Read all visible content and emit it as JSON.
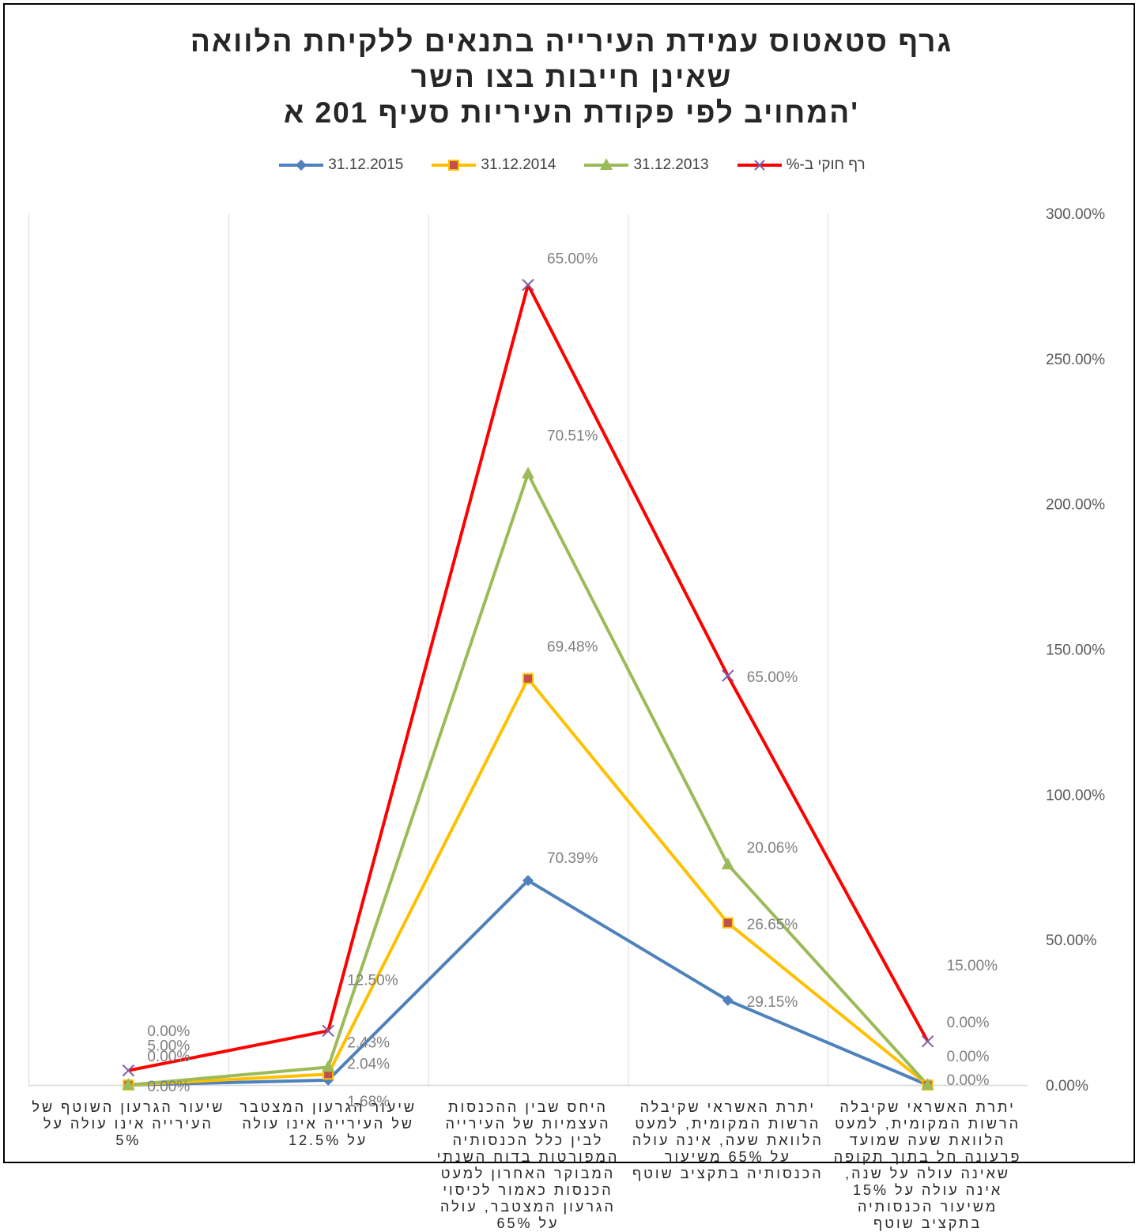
{
  "chart_data": {
    "type": "line",
    "title": [
      "גרף סטאטוס עמידת העירייה בתנאים ללקיחת הלוואה",
      "שאינן חייבות בצו השר",
      "המחויב לפי פקודת העיריות סעיף 201 א'"
    ],
    "categories": [
      "יתרת האשראי שקיבלה הרשות המקומית, למעט הלוואת שעה שמועד פרעונה חל בתוך תקופה שאינה עולה על שנה, אינה עולה על 15% משיעור הכנסותיה בתקציב שוטף",
      "יתרת האשראי שקיבלה הרשות המקומית, למעט הלוואת שעה, אינה עולה על 65% משיעור הכנסותיה בתקציב שוטף",
      "היחס שבין ההכנסות העצמיות של העירייה לבין כלל הכנסותיה המפורטות בדוח השנתי המבוקר האחרון למעט הכנסות כאמור לכיסוי הגרעון המצטבר, עולה על 65%",
      "שיעור הגרעון המצטבר של העירייה אינו עולה על 12.5%",
      "שיעור הגרעון השוטף של העירייה אינו עולה על 5%"
    ],
    "ylim": [
      0,
      300
    ],
    "yticks": [
      "0.00%",
      "50.00%",
      "100.00%",
      "150.00%",
      "200.00%",
      "250.00%",
      "300.00%"
    ],
    "y_axis_position": "right",
    "x_axis_reversed": true,
    "legend_position": "top",
    "grid": "vertical",
    "series": [
      {
        "name": "31.12.2015",
        "color": "#4F81BD",
        "marker": "diamond",
        "values": [
          0,
          29.15,
          70.39,
          1.68,
          0
        ],
        "labels": [
          "0.00%",
          "29.15%",
          "70.39%",
          "1.68%",
          "0.00%"
        ]
      },
      {
        "name": "31.12.2014",
        "color": "#FFC000",
        "marker": "square",
        "values": [
          0,
          55.8,
          139.87,
          3.72,
          0
        ],
        "labels": [
          "0.00%",
          "26.65%",
          "69.48%",
          "2.04%",
          "0.00%"
        ]
      },
      {
        "name": "31.12.2013",
        "color": "#9BBB59",
        "marker": "triangle",
        "values": [
          0,
          75.86,
          210.38,
          6.15,
          0
        ],
        "labels": [
          "0.00%",
          "20.06%",
          "70.51%",
          "2.43%",
          "0.00%"
        ]
      },
      {
        "name": "רף חוקי ב-%",
        "color": "#FF0000",
        "marker": "x",
        "values": [
          15,
          140.86,
          275.38,
          18.65,
          5
        ],
        "labels": [
          "15.00%",
          "65.00%",
          "65.00%",
          "12.50%",
          "5.00%"
        ]
      }
    ]
  }
}
